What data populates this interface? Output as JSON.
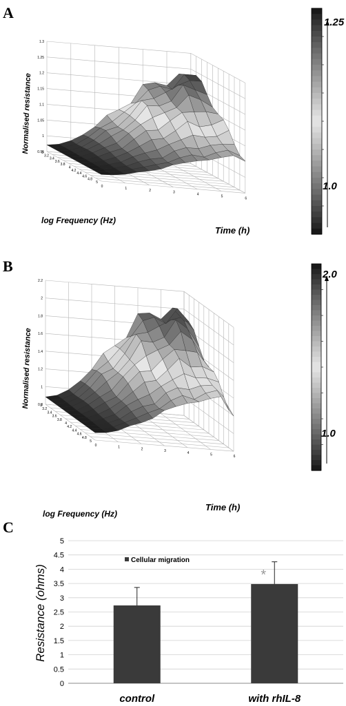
{
  "panels": {
    "A": {
      "letter": "A",
      "z_label": "Normalised resistance",
      "x_label": "log Frequency (Hz)",
      "y_label": "Time (h)",
      "z_ticks": [
        "0.95",
        "1",
        "1.05",
        "1.1",
        "1.15",
        "1.2",
        "1.25",
        "1.3"
      ],
      "freq_ticks": [
        "3",
        "3.2",
        "3.4",
        "3.6",
        "3.8",
        "4",
        "4.2",
        "4.4",
        "4.6",
        "4.8",
        "5"
      ],
      "time_ticks": [
        "0",
        "1",
        "2",
        "3",
        "4",
        "5",
        "6"
      ],
      "colorbar": {
        "top_label": "1.25",
        "bottom_label": "1.0"
      },
      "surface_max": 1.28
    },
    "B": {
      "letter": "B",
      "z_label": "Normalised resistance",
      "x_label": "log Frequency (Hz)",
      "y_label": "Time (h)",
      "z_ticks": [
        "0.8",
        "1",
        "1.2",
        "1.4",
        "1.6",
        "1.8",
        "2",
        "2.2"
      ],
      "freq_ticks": [
        "3",
        "3.2",
        "3.4",
        "3.6",
        "3.8",
        "4",
        "4.2",
        "4.4",
        "4.6",
        "4.8",
        "5"
      ],
      "time_ticks": [
        "0",
        "1",
        "2",
        "3",
        "4",
        "5",
        "6"
      ],
      "colorbar": {
        "top_label": "2.0",
        "bottom_label": "1.0"
      },
      "surface_max": 2.05
    }
  },
  "chart_data": {
    "type": "bar",
    "letter": "C",
    "categories": [
      "control",
      "with rhIL-8"
    ],
    "series": [
      {
        "name": "Cellular migration",
        "values": [
          2.73,
          3.48
        ],
        "errors": [
          0.63,
          0.78
        ]
      }
    ],
    "significance_marker": "*",
    "ylabel": "Resistance (ohms)",
    "ylim": [
      0,
      5
    ],
    "yticks": [
      "0",
      "0.5",
      "1",
      "1.5",
      "2",
      "2.5",
      "3",
      "3.5",
      "4",
      "4.5",
      "5"
    ],
    "grid": true,
    "legend_position": "top-left",
    "colors": {
      "bar": "#3a3a3a",
      "grid": "#d0d0d0",
      "significance": "#999999"
    }
  }
}
